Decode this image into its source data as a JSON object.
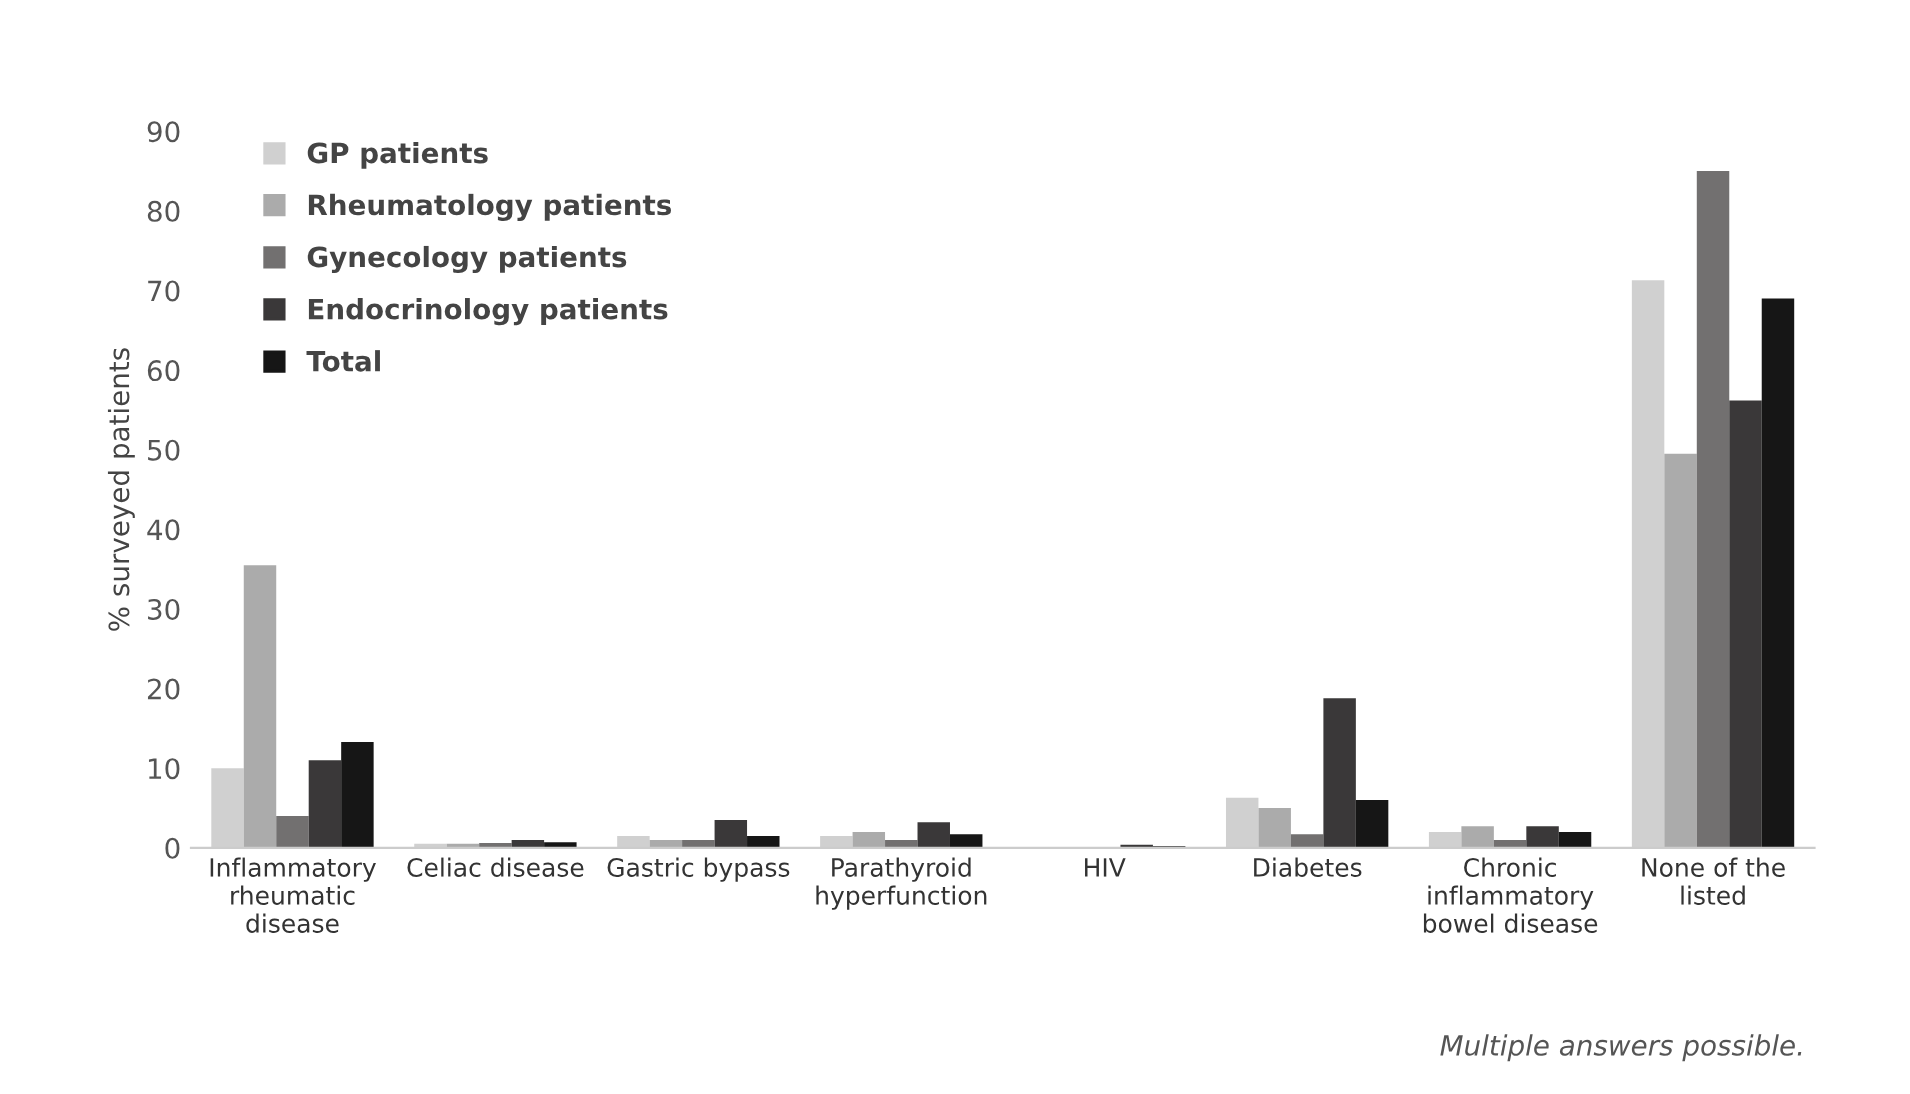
{
  "chart_data": {
    "type": "bar",
    "ylabel": "% surveyed patients",
    "categories": [
      "Inflammatory\nrheumatic\ndisease",
      "Celiac disease",
      "Gastric bypass",
      "Parathyroid\nhyperfunction",
      "HIV",
      "Diabetes",
      "Chronic\ninflammatory\nbowel disease",
      "None of the\nlisted"
    ],
    "series": [
      {
        "name": "GP patients",
        "color": "#d0d0d0",
        "values": [
          10,
          0.5,
          1.5,
          1.5,
          null,
          6.3,
          2.0,
          71.3
        ]
      },
      {
        "name": "Rheumatology patients",
        "color": "#ababab",
        "values": [
          35.5,
          0.5,
          1.0,
          2.0,
          null,
          5.0,
          2.7,
          49.5
        ]
      },
      {
        "name": "Gynecology patients",
        "color": "#727070",
        "values": [
          4,
          0.6,
          1.0,
          1.0,
          null,
          1.7,
          1.0,
          85
        ]
      },
      {
        "name": "Endocrinology patients",
        "color": "#3a3839",
        "values": [
          11,
          1.0,
          3.5,
          3.2,
          0.4,
          18.8,
          2.7,
          56.2
        ]
      },
      {
        "name": "Total",
        "color": "#161616",
        "values": [
          13.3,
          0.7,
          1.5,
          1.7,
          0.2,
          6.0,
          2.0,
          69
        ]
      }
    ],
    "ylim": [
      0,
      90
    ],
    "yticks": [
      0,
      10,
      20,
      30,
      40,
      50,
      60,
      70,
      80,
      90
    ],
    "grid": false,
    "legend": "top left",
    "annotations": [
      "Multiple answers possible."
    ]
  }
}
